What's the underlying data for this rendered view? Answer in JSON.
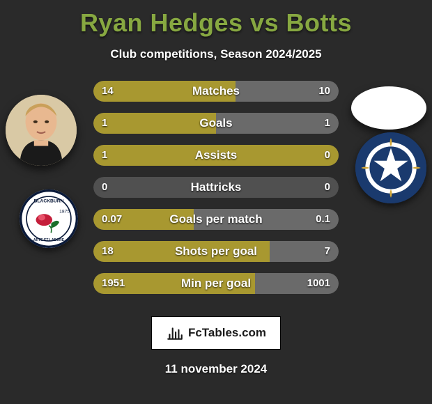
{
  "title": "Ryan Hedges vs Botts",
  "subtitle": "Club competitions, Season 2024/2025",
  "date": "11 november 2024",
  "branding_text": "FcTables.com",
  "colors": {
    "title": "#87a841",
    "bar_left": "#a89830",
    "bar_right": "#6a6a6a",
    "bar_empty": "#505050",
    "background": "#2a2a2a",
    "badge_right_bg": "#1a3a6e"
  },
  "stats": [
    {
      "label": "Matches",
      "left_val": "14",
      "right_val": "10",
      "left_pct": 58,
      "right_pct": 42
    },
    {
      "label": "Goals",
      "left_val": "1",
      "right_val": "1",
      "left_pct": 50,
      "right_pct": 50
    },
    {
      "label": "Assists",
      "left_val": "1",
      "right_val": "0",
      "left_pct": 100,
      "right_pct": 0
    },
    {
      "label": "Hattricks",
      "left_val": "0",
      "right_val": "0",
      "left_pct": 0,
      "right_pct": 0
    },
    {
      "label": "Goals per match",
      "left_val": "0.07",
      "right_val": "0.1",
      "left_pct": 41,
      "right_pct": 59
    },
    {
      "label": "Shots per goal",
      "left_val": "18",
      "right_val": "7",
      "left_pct": 72,
      "right_pct": 28
    },
    {
      "label": "Min per goal",
      "left_val": "1951",
      "right_val": "1001",
      "left_pct": 66,
      "right_pct": 34
    }
  ]
}
